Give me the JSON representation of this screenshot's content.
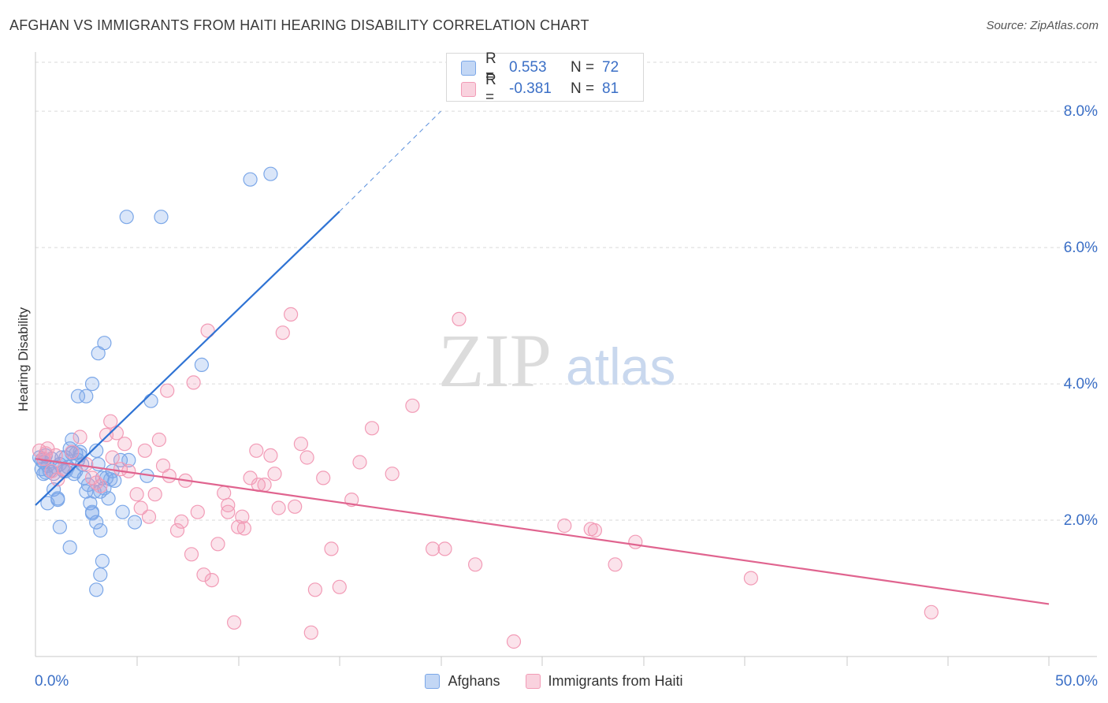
{
  "header": {
    "title": "AFGHAN VS IMMIGRANTS FROM HAITI HEARING DISABILITY CORRELATION CHART",
    "source": "Source: ZipAtlas.com"
  },
  "watermark": {
    "zip": "ZIP",
    "atlas": "atlas"
  },
  "legend_top": {
    "rows": [
      {
        "r_label": "R =",
        "r_value": "0.553",
        "n_label": "N =",
        "n_value": "72",
        "color": "#7ba7e8"
      },
      {
        "r_label": "R =",
        "r_value": "-0.381",
        "n_label": "N =",
        "n_value": "81",
        "color": "#f29bb6"
      }
    ]
  },
  "legend_bottom": {
    "items": [
      {
        "label": "Afghans",
        "color": "#7ba7e8"
      },
      {
        "label": "Immigrants from Haiti",
        "color": "#f29bb6"
      }
    ]
  },
  "chart_data": {
    "type": "scatter",
    "title": "AFGHAN VS IMMIGRANTS FROM HAITI HEARING DISABILITY CORRELATION CHART",
    "xlabel": "",
    "ylabel": "Hearing Disability",
    "xlim": [
      0,
      50
    ],
    "ylim": [
      0,
      8.8
    ],
    "x_tick_labels": [
      "0.0%",
      "50.0%"
    ],
    "y_ticks": [
      2,
      4,
      6,
      8
    ],
    "y_tick_labels": [
      "2.0%",
      "4.0%",
      "6.0%",
      "8.0%"
    ],
    "grid": true,
    "series": [
      {
        "name": "Afghans",
        "color": "#7ba7e8",
        "line_color": "#2f73d4",
        "r": 0.553,
        "n": 72,
        "trend": {
          "x0": 0.0,
          "y0": 2.22,
          "x1": 15.0,
          "y1": 6.53,
          "dash_to_x": 20.0,
          "dash_to_y": 8.0
        },
        "points": [
          [
            0.2,
            2.92
          ],
          [
            0.3,
            2.75
          ],
          [
            0.4,
            2.85
          ],
          [
            0.5,
            2.7
          ],
          [
            0.5,
            2.95
          ],
          [
            0.6,
            2.8
          ],
          [
            0.7,
            2.72
          ],
          [
            0.8,
            2.9
          ],
          [
            0.9,
            2.68
          ],
          [
            1.0,
            2.78
          ],
          [
            0.9,
            2.45
          ],
          [
            1.1,
            2.3
          ],
          [
            1.2,
            2.82
          ],
          [
            1.3,
            2.92
          ],
          [
            1.4,
            2.72
          ],
          [
            1.5,
            2.92
          ],
          [
            1.6,
            2.78
          ],
          [
            1.7,
            3.05
          ],
          [
            1.8,
            3.18
          ],
          [
            1.9,
            2.68
          ],
          [
            2.0,
            2.98
          ],
          [
            2.1,
            2.88
          ],
          [
            2.2,
            2.95
          ],
          [
            2.3,
            2.82
          ],
          [
            1.8,
            2.98
          ],
          [
            2.5,
            2.42
          ],
          [
            2.6,
            2.52
          ],
          [
            2.7,
            2.25
          ],
          [
            2.8,
            2.12
          ],
          [
            2.9,
            2.42
          ],
          [
            3.0,
            3.02
          ],
          [
            3.1,
            2.82
          ],
          [
            3.2,
            2.42
          ],
          [
            3.3,
            2.62
          ],
          [
            3.4,
            2.47
          ],
          [
            3.5,
            2.62
          ],
          [
            3.6,
            2.32
          ],
          [
            3.8,
            2.72
          ],
          [
            3.9,
            2.58
          ],
          [
            4.2,
            2.88
          ],
          [
            4.3,
            2.12
          ],
          [
            4.6,
            2.88
          ],
          [
            4.9,
            1.97
          ],
          [
            5.5,
            2.65
          ],
          [
            5.7,
            3.75
          ],
          [
            6.2,
            6.45
          ],
          [
            8.2,
            4.28
          ],
          [
            3.1,
            4.45
          ],
          [
            3.4,
            4.6
          ],
          [
            2.5,
            3.82
          ],
          [
            2.1,
            3.82
          ],
          [
            2.8,
            4.0
          ],
          [
            2.2,
            3.0
          ],
          [
            3.0,
            1.97
          ],
          [
            2.8,
            2.1
          ],
          [
            1.2,
            1.9
          ],
          [
            1.7,
            1.6
          ],
          [
            3.2,
            1.85
          ],
          [
            3.3,
            1.4
          ],
          [
            3.2,
            1.2
          ],
          [
            3.0,
            0.98
          ],
          [
            10.6,
            7.0
          ],
          [
            11.6,
            7.08
          ],
          [
            4.5,
            6.45
          ],
          [
            0.4,
            2.68
          ],
          [
            1.5,
            2.72
          ],
          [
            2.0,
            2.72
          ],
          [
            0.6,
            2.25
          ],
          [
            1.1,
            2.32
          ],
          [
            2.4,
            2.62
          ],
          [
            3.7,
            2.6
          ],
          [
            0.3,
            2.88
          ]
        ]
      },
      {
        "name": "Immigrants from Haiti",
        "color": "#f29bb6",
        "line_color": "#e0648f",
        "r": -0.381,
        "n": 81,
        "trend": {
          "x0": 0.0,
          "y0": 2.9,
          "x1": 50.0,
          "y1": 0.77
        },
        "points": [
          [
            0.2,
            3.02
          ],
          [
            0.4,
            2.9
          ],
          [
            0.6,
            3.05
          ],
          [
            0.8,
            2.72
          ],
          [
            1.0,
            2.95
          ],
          [
            1.4,
            2.75
          ],
          [
            1.8,
            3.0
          ],
          [
            2.2,
            3.22
          ],
          [
            2.5,
            2.82
          ],
          [
            2.8,
            2.62
          ],
          [
            3.0,
            2.55
          ],
          [
            3.2,
            2.5
          ],
          [
            3.5,
            3.25
          ],
          [
            3.7,
            3.45
          ],
          [
            4.0,
            3.28
          ],
          [
            4.2,
            2.75
          ],
          [
            4.4,
            3.12
          ],
          [
            4.6,
            2.72
          ],
          [
            5.0,
            2.38
          ],
          [
            5.2,
            2.18
          ],
          [
            5.4,
            3.02
          ],
          [
            5.6,
            2.05
          ],
          [
            5.9,
            2.38
          ],
          [
            6.1,
            3.18
          ],
          [
            6.3,
            2.8
          ],
          [
            6.5,
            3.9
          ],
          [
            6.6,
            2.65
          ],
          [
            7.0,
            1.85
          ],
          [
            7.2,
            1.98
          ],
          [
            7.4,
            2.58
          ],
          [
            7.7,
            1.5
          ],
          [
            7.8,
            4.02
          ],
          [
            8.0,
            2.12
          ],
          [
            8.3,
            1.2
          ],
          [
            8.5,
            4.78
          ],
          [
            8.7,
            1.12
          ],
          [
            9.0,
            1.65
          ],
          [
            9.3,
            2.4
          ],
          [
            9.5,
            2.22
          ],
          [
            9.8,
            0.5
          ],
          [
            10.0,
            1.9
          ],
          [
            10.3,
            1.88
          ],
          [
            10.6,
            2.62
          ],
          [
            10.9,
            3.02
          ],
          [
            11.0,
            2.52
          ],
          [
            11.3,
            2.52
          ],
          [
            11.6,
            2.95
          ],
          [
            11.8,
            2.68
          ],
          [
            12.0,
            2.18
          ],
          [
            12.2,
            4.75
          ],
          [
            12.6,
            5.02
          ],
          [
            12.8,
            2.2
          ],
          [
            13.1,
            3.12
          ],
          [
            13.4,
            2.92
          ],
          [
            13.6,
            0.35
          ],
          [
            13.8,
            0.98
          ],
          [
            14.2,
            2.62
          ],
          [
            14.6,
            1.58
          ],
          [
            15.0,
            1.02
          ],
          [
            15.6,
            2.3
          ],
          [
            16.0,
            2.85
          ],
          [
            16.6,
            3.35
          ],
          [
            17.6,
            2.68
          ],
          [
            18.6,
            3.68
          ],
          [
            19.6,
            1.58
          ],
          [
            20.2,
            1.58
          ],
          [
            20.9,
            4.95
          ],
          [
            21.7,
            1.35
          ],
          [
            23.6,
            0.22
          ],
          [
            26.1,
            1.92
          ],
          [
            27.4,
            1.87
          ],
          [
            27.6,
            1.85
          ],
          [
            28.6,
            1.35
          ],
          [
            29.6,
            1.68
          ],
          [
            35.3,
            1.15
          ],
          [
            44.2,
            0.65
          ],
          [
            0.5,
            2.98
          ],
          [
            1.1,
            2.6
          ],
          [
            3.8,
            2.92
          ],
          [
            9.5,
            2.12
          ],
          [
            10.2,
            2.05
          ]
        ]
      }
    ]
  }
}
